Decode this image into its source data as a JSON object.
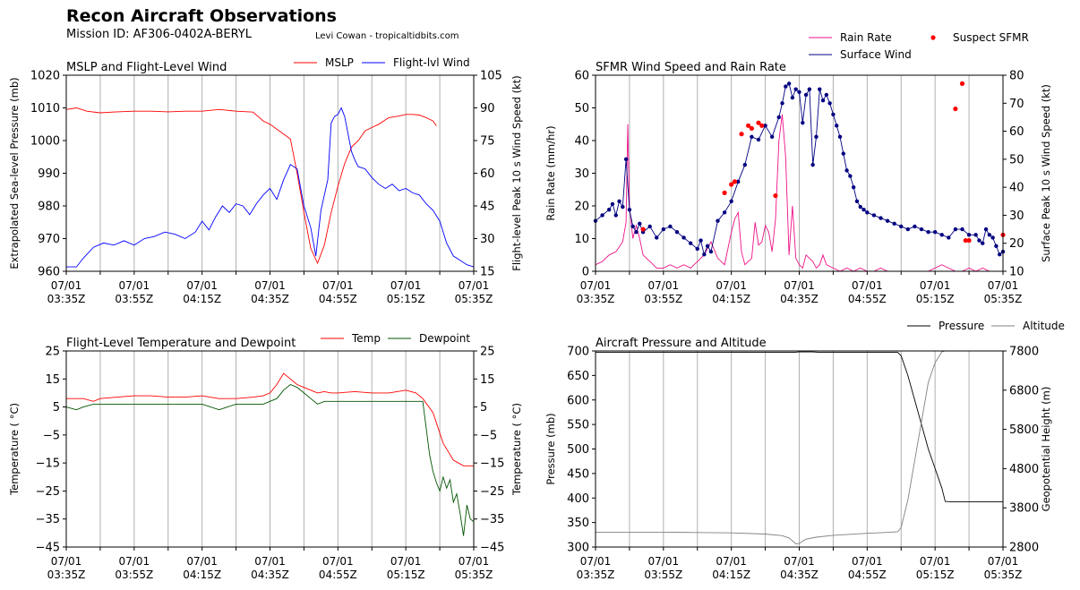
{
  "header": {
    "title": "Recon Aircraft Observations",
    "mission": "Mission ID: AF306-0402A-BERYL",
    "credit": "Levi Cowan - tropicaltidbits.com"
  },
  "time_ticks": [
    "07/01\n03:35Z",
    "07/01\n03:55Z",
    "07/01\n04:15Z",
    "07/01\n04:35Z",
    "07/01\n04:55Z",
    "07/01\n05:15Z",
    "07/01\n05:35Z"
  ],
  "chart_data": [
    {
      "type": "line",
      "title": "MSLP and Flight-Level Wind",
      "xlabel": "",
      "ylabel": "Extrapolated Sea-level Pressure (mb)",
      "ylabel_right": "Flight-level Peak 10 s Wind Speed (kt)",
      "xlim": [
        0,
        120
      ],
      "ylim": [
        960,
        1020
      ],
      "ylim_right": [
        15,
        105
      ],
      "yticks": [
        "960",
        "970",
        "980",
        "990",
        "1000",
        "1010",
        "1020"
      ],
      "yticks_right": [
        "15",
        "30",
        "45",
        "60",
        "75",
        "90",
        "105"
      ],
      "grid": "x",
      "legend_position": "top-right",
      "series": [
        {
          "name": "MSLP",
          "color": "#ff0000",
          "axis": "left",
          "x": [
            0,
            3,
            6,
            10,
            15,
            20,
            25,
            30,
            35,
            40,
            45,
            50,
            55,
            58,
            60,
            62,
            64,
            66,
            68,
            70,
            72,
            74,
            76,
            78,
            80,
            82,
            84,
            86,
            88,
            90,
            92,
            95,
            98,
            100,
            102,
            104,
            106,
            108,
            109
          ],
          "y": [
            1009.5,
            1010,
            1009,
            1008.5,
            1008.8,
            1009,
            1009,
            1008.8,
            1009,
            1009,
            1009.5,
            1009,
            1008.7,
            1006,
            1005,
            1003.5,
            1002,
            1000.5,
            990,
            978,
            967,
            962.5,
            968,
            978,
            986,
            993,
            998,
            1000,
            1003,
            1004,
            1005,
            1007,
            1007.5,
            1008,
            1008,
            1007.8,
            1007,
            1006,
            1004.5
          ]
        },
        {
          "name": "Flight-lvl Wind",
          "color": "#0000ff",
          "axis": "right",
          "x": [
            0,
            3,
            5,
            8,
            11,
            14,
            17,
            20,
            23,
            26,
            29,
            32,
            35,
            38,
            40,
            42,
            44,
            46,
            48,
            50,
            52,
            54,
            56,
            58,
            60,
            62,
            64,
            66,
            68,
            70,
            72,
            73.5,
            75,
            77,
            78,
            79,
            80,
            81,
            82,
            83,
            84,
            85,
            86,
            88,
            90,
            92,
            94,
            96,
            98,
            100,
            102,
            104,
            106,
            108,
            110,
            112,
            114,
            116,
            118,
            120
          ],
          "y": [
            17,
            17,
            21,
            26,
            28,
            27,
            29,
            27,
            30,
            31,
            33,
            32,
            30,
            33,
            38,
            34,
            40,
            45,
            42,
            46,
            45,
            41,
            46,
            50,
            53,
            48,
            57,
            64,
            62,
            45,
            35,
            22,
            43,
            57,
            83,
            86,
            87,
            90,
            86,
            78,
            70,
            66,
            63,
            62,
            58,
            55,
            53,
            55,
            52,
            53,
            51,
            50,
            46,
            43,
            38,
            28,
            22,
            20,
            18,
            17
          ]
        }
      ]
    },
    {
      "type": "line",
      "title": "SFMR Wind Speed and Rain Rate",
      "xlabel": "",
      "ylabel": "Rain Rate (mm/hr)",
      "ylabel_right": "Surface Peak 10 s Wind Speed (kt)",
      "xlim": [
        0,
        120
      ],
      "ylim": [
        0,
        60
      ],
      "ylim_right": [
        10,
        80
      ],
      "yticks": [
        "0",
        "10",
        "20",
        "30",
        "40",
        "50",
        "60"
      ],
      "yticks_right": [
        "10",
        "20",
        "30",
        "40",
        "50",
        "60",
        "70",
        "80"
      ],
      "grid": "x",
      "legend_position": "top-right",
      "series": [
        {
          "name": "Rain Rate",
          "color": "#ee1188",
          "axis": "left",
          "x": [
            0,
            2,
            4,
            6,
            8,
            9,
            9.5,
            10,
            11,
            12,
            13,
            14,
            15,
            16,
            17,
            18,
            20,
            22,
            24,
            26,
            28,
            30,
            32,
            34,
            36,
            38,
            40,
            41,
            42,
            43,
            44,
            45,
            46,
            47,
            48,
            49,
            50,
            51,
            52,
            53,
            54,
            55,
            56,
            57,
            58,
            59,
            60,
            61,
            62,
            63,
            64,
            65,
            66,
            67,
            68,
            70,
            72,
            74,
            76,
            78,
            80,
            82,
            84,
            86,
            88,
            90,
            92,
            94,
            96,
            98,
            100,
            102,
            104,
            106,
            108,
            110,
            112,
            114,
            116,
            118,
            120
          ],
          "y": [
            2,
            3,
            5,
            6,
            9,
            15,
            45,
            20,
            10,
            14,
            10,
            5,
            4,
            3,
            2,
            1,
            1,
            2,
            1,
            2,
            1,
            3,
            5,
            9,
            4,
            2,
            12,
            16,
            18,
            6,
            2,
            3,
            4,
            15,
            8,
            9,
            14,
            12,
            6,
            16,
            40,
            48,
            35,
            5,
            20,
            4,
            2,
            1,
            5,
            4,
            3,
            1,
            2,
            5,
            2,
            1,
            0,
            1,
            0,
            1,
            0,
            0,
            1,
            0,
            0,
            0,
            0,
            0,
            0,
            0,
            1,
            2,
            1,
            0,
            0,
            1,
            0,
            1,
            0,
            0,
            0
          ]
        },
        {
          "name": "Surface Wind",
          "color": "#000080",
          "axis": "right",
          "x": [
            0,
            2,
            4,
            5,
            6,
            7,
            8,
            9,
            10,
            11,
            12,
            13,
            14,
            16,
            18,
            20,
            22,
            24,
            26,
            28,
            30,
            31,
            32,
            33,
            34,
            36,
            38,
            40,
            42,
            44,
            46,
            48,
            50,
            52,
            54,
            55,
            56,
            57,
            58,
            59,
            60,
            61,
            62,
            63,
            64,
            65,
            66,
            67,
            68,
            69,
            70,
            71,
            72,
            73,
            74,
            75,
            76,
            77,
            78,
            79,
            80,
            82,
            84,
            86,
            88,
            90,
            92,
            94,
            96,
            98,
            100,
            102,
            104,
            106,
            108,
            110,
            112,
            113,
            114,
            115,
            116,
            117,
            118,
            119,
            120
          ],
          "y": [
            28,
            30,
            32,
            34,
            30,
            35,
            33,
            50,
            32,
            26,
            24,
            27,
            24,
            26,
            22,
            25,
            26,
            24,
            22,
            20,
            18,
            21,
            16,
            19,
            17,
            28,
            31,
            35,
            42,
            48,
            58,
            57,
            62,
            58,
            65,
            70,
            76,
            77,
            72,
            75,
            74,
            63,
            73,
            75,
            48,
            58,
            75,
            71,
            73,
            70,
            66,
            62,
            58,
            52,
            46,
            44,
            40,
            35,
            33,
            32,
            31,
            30,
            29,
            28,
            27,
            26,
            25,
            26,
            25,
            24,
            24,
            23,
            22,
            25,
            25,
            23,
            23,
            21,
            20,
            25,
            23,
            22,
            19,
            16,
            17
          ]
        },
        {
          "name": "Suspect SFMR",
          "color": "#ff0000",
          "axis": "right",
          "x": [
            14,
            38,
            40,
            41,
            43,
            45,
            46,
            48,
            49,
            53,
            106,
            108,
            109,
            110,
            120
          ],
          "y": [
            25,
            38,
            41,
            42,
            59,
            62,
            61,
            63,
            62,
            37,
            68,
            77,
            21,
            21,
            23
          ]
        }
      ]
    },
    {
      "type": "line",
      "title": "Flight-Level Temperature and Dewpoint",
      "xlabel": "",
      "ylabel": "Temperature ( °C)",
      "ylabel_right": "Temperature ( °C)",
      "xlim": [
        0,
        120
      ],
      "ylim": [
        -45,
        25
      ],
      "ylim_right": [
        -45,
        25
      ],
      "yticks": [
        "−45",
        "−35",
        "−25",
        "−15",
        "−5",
        "5",
        "15",
        "25"
      ],
      "yticks_right": [
        "−45",
        "−35",
        "−25",
        "−15",
        "−5",
        "5",
        "15",
        "25"
      ],
      "grid": "x",
      "legend_position": "top-right",
      "series": [
        {
          "name": "Temp",
          "color": "#ff0000",
          "axis": "left",
          "x": [
            0,
            5,
            8,
            10,
            15,
            20,
            25,
            30,
            35,
            40,
            45,
            50,
            55,
            58,
            60,
            62,
            64,
            66,
            68,
            70,
            72,
            74,
            76,
            78,
            80,
            85,
            90,
            95,
            100,
            103,
            105,
            108,
            111,
            114,
            117,
            120
          ],
          "y": [
            8,
            8,
            7,
            8,
            8.5,
            9,
            9,
            8.5,
            8.5,
            9,
            8,
            8,
            8.5,
            9,
            10,
            13,
            17,
            15,
            13,
            12,
            11,
            10,
            10.5,
            10,
            10,
            10.5,
            10,
            10,
            11,
            10,
            8,
            3,
            -8,
            -14,
            -16,
            -16
          ]
        },
        {
          "name": "Dewpoint",
          "color": "#005500",
          "axis": "left",
          "x": [
            0,
            3,
            5,
            8,
            10,
            15,
            20,
            25,
            30,
            35,
            40,
            45,
            50,
            55,
            58,
            60,
            62,
            64,
            66,
            68,
            70,
            72,
            74,
            76,
            78,
            80,
            85,
            90,
            95,
            100,
            103,
            105,
            107,
            108,
            109,
            110,
            111,
            112,
            113,
            114,
            115,
            116,
            117,
            118,
            119,
            120
          ],
          "y": [
            5,
            4,
            5,
            6,
            6,
            6,
            6,
            6,
            6,
            6,
            6,
            4,
            6,
            6,
            6,
            7,
            8,
            11,
            13,
            12,
            10,
            8,
            6,
            7,
            7,
            7,
            7,
            7,
            7,
            7,
            7,
            7,
            -12,
            -18,
            -22,
            -25,
            -20,
            -24,
            -21,
            -29,
            -26,
            -33,
            -41,
            -30,
            -35,
            -36
          ]
        }
      ]
    },
    {
      "type": "line",
      "title": "Aircraft Pressure and Altitude",
      "xlabel": "",
      "ylabel": "Pressure (mb)",
      "ylabel_right": "Geopotential Height (m)",
      "xlim": [
        0,
        120
      ],
      "ylim": [
        300,
        700
      ],
      "ylim_right": [
        2800,
        7800
      ],
      "yticks": [
        "300",
        "350",
        "400",
        "450",
        "500",
        "550",
        "600",
        "650",
        "700"
      ],
      "yticks_right": [
        "2800",
        "3800",
        "4800",
        "5800",
        "6800",
        "7800"
      ],
      "grid": "x",
      "legend_position": "top-right",
      "series": [
        {
          "name": "Pressure",
          "color": "#000000",
          "axis": "left",
          "x": [
            0,
            10,
            20,
            30,
            40,
            50,
            55,
            58,
            60,
            62,
            64,
            66,
            68,
            70,
            80,
            89,
            90,
            92,
            94,
            96,
            98,
            100,
            102,
            103,
            105,
            110,
            115,
            120
          ],
          "y": [
            697,
            697,
            697,
            697,
            697,
            697,
            697,
            697,
            698,
            698,
            698,
            697,
            697,
            697,
            697,
            697,
            690,
            650,
            600,
            550,
            500,
            460,
            420,
            393,
            392,
            392,
            392,
            392
          ]
        },
        {
          "name": "Altitude",
          "color": "#808080",
          "axis": "right",
          "x": [
            0,
            10,
            20,
            30,
            40,
            50,
            55,
            57,
            58,
            59,
            60,
            61,
            62,
            65,
            70,
            80,
            85,
            89,
            90,
            92,
            94,
            96,
            98,
            100,
            102,
            103,
            105,
            110,
            115,
            120
          ],
          "y": [
            3180,
            3180,
            3180,
            3170,
            3160,
            3130,
            3090,
            3030,
            2960,
            2880,
            2890,
            2950,
            3000,
            3050,
            3100,
            3150,
            3170,
            3190,
            3300,
            4000,
            5000,
            6000,
            7000,
            7500,
            7780,
            7800,
            7800,
            7800,
            7800,
            7800
          ]
        }
      ]
    }
  ]
}
